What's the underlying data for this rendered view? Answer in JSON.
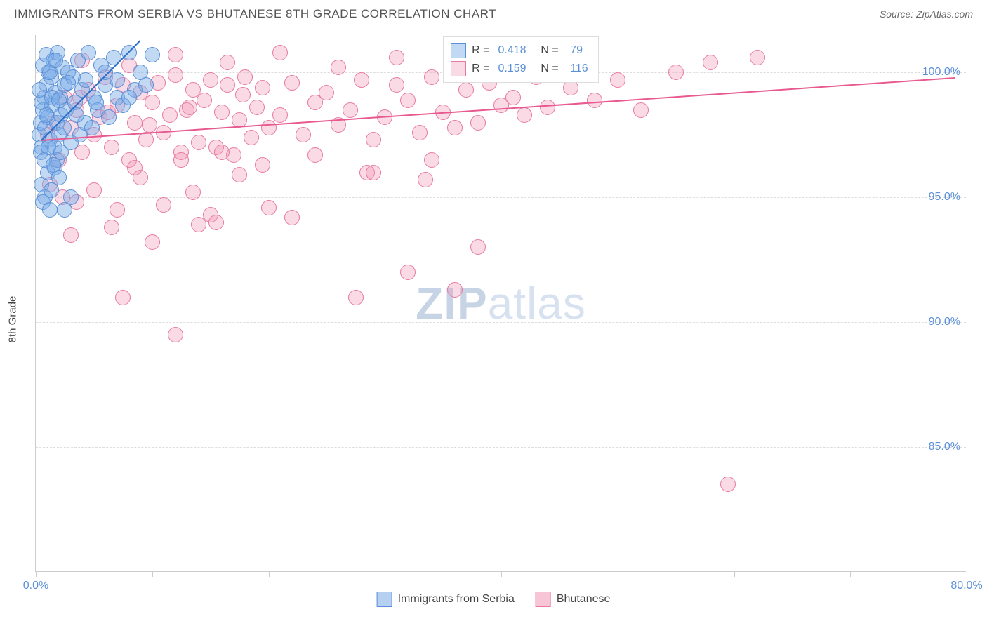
{
  "header": {
    "title": "IMMIGRANTS FROM SERBIA VS BHUTANESE 8TH GRADE CORRELATION CHART",
    "source": "Source: ZipAtlas.com"
  },
  "chart": {
    "type": "scatter",
    "y_axis_title": "8th Grade",
    "background_color": "#ffffff",
    "grid_color": "#dddddd",
    "axis_color": "#cccccc",
    "label_color": "#5b8fd6",
    "xlim": [
      0,
      80
    ],
    "ylim": [
      80,
      101.5
    ],
    "x_ticks": [
      0,
      10,
      20,
      30,
      40,
      50,
      60,
      70,
      80
    ],
    "x_tick_labels": {
      "0": "0.0%",
      "80": "80.0%"
    },
    "y_ticks": [
      85,
      90,
      95,
      100
    ],
    "y_tick_labels": [
      "85.0%",
      "90.0%",
      "95.0%",
      "100.0%"
    ],
    "marker_radius": 11,
    "watermark": {
      "bold": "ZIP",
      "light": "atlas"
    },
    "series": [
      {
        "name": "Immigrants from Serbia",
        "color_fill": "rgba(120,170,230,0.45)",
        "color_stroke": "#5b8fd6",
        "trend_color": "#2b6fc7",
        "R": "0.418",
        "N": "79",
        "trend": {
          "x1": 0.5,
          "y1": 97.3,
          "x2": 9.0,
          "y2": 101.3
        },
        "points": [
          [
            0.3,
            97.5
          ],
          [
            0.4,
            98.0
          ],
          [
            0.5,
            97.0
          ],
          [
            0.6,
            98.5
          ],
          [
            0.7,
            99.0
          ],
          [
            0.8,
            97.8
          ],
          [
            0.9,
            99.5
          ],
          [
            1.0,
            98.2
          ],
          [
            1.1,
            100.0
          ],
          [
            1.2,
            97.3
          ],
          [
            1.3,
            99.8
          ],
          [
            1.4,
            98.7
          ],
          [
            1.5,
            100.5
          ],
          [
            1.6,
            97.0
          ],
          [
            1.7,
            99.2
          ],
          [
            1.8,
            98.0
          ],
          [
            1.9,
            100.8
          ],
          [
            2.0,
            97.5
          ],
          [
            2.1,
            99.0
          ],
          [
            2.2,
            98.3
          ],
          [
            2.3,
            100.2
          ],
          [
            2.4,
            97.8
          ],
          [
            2.5,
            99.5
          ],
          [
            2.6,
            98.5
          ],
          [
            2.8,
            100.0
          ],
          [
            3.0,
            97.2
          ],
          [
            3.2,
            99.8
          ],
          [
            3.4,
            98.8
          ],
          [
            3.6,
            100.5
          ],
          [
            3.8,
            97.5
          ],
          [
            4.0,
            99.3
          ],
          [
            4.2,
            98.0
          ],
          [
            4.5,
            100.8
          ],
          [
            4.8,
            97.8
          ],
          [
            5.0,
            99.0
          ],
          [
            5.3,
            98.5
          ],
          [
            5.6,
            100.3
          ],
          [
            6.0,
            99.5
          ],
          [
            6.3,
            98.2
          ],
          [
            6.7,
            100.6
          ],
          [
            7.0,
            99.0
          ],
          [
            7.5,
            98.7
          ],
          [
            8.0,
            100.8
          ],
          [
            8.5,
            99.3
          ],
          [
            9.0,
            100.0
          ],
          [
            9.5,
            99.5
          ],
          [
            10.0,
            100.7
          ],
          [
            0.5,
            95.5
          ],
          [
            0.8,
            95.0
          ],
          [
            1.0,
            96.0
          ],
          [
            1.3,
            95.3
          ],
          [
            1.6,
            96.2
          ],
          [
            2.0,
            95.8
          ],
          [
            2.5,
            94.5
          ],
          [
            3.0,
            95.0
          ],
          [
            0.6,
            94.8
          ],
          [
            1.2,
            94.5
          ],
          [
            1.8,
            96.5
          ],
          [
            0.4,
            96.8
          ],
          [
            0.7,
            96.5
          ],
          [
            1.1,
            97.0
          ],
          [
            1.5,
            96.3
          ],
          [
            2.2,
            96.8
          ],
          [
            0.5,
            98.8
          ],
          [
            0.9,
            98.3
          ],
          [
            1.4,
            99.0
          ],
          [
            2.0,
            98.9
          ],
          [
            2.8,
            99.6
          ],
          [
            3.5,
            98.3
          ],
          [
            4.3,
            99.7
          ],
          [
            5.2,
            98.8
          ],
          [
            6.0,
            100.0
          ],
          [
            7.0,
            99.7
          ],
          [
            8.0,
            99.0
          ],
          [
            0.3,
            99.3
          ],
          [
            0.6,
            100.3
          ],
          [
            0.9,
            100.7
          ],
          [
            1.2,
            100.0
          ],
          [
            1.7,
            100.5
          ]
        ]
      },
      {
        "name": "Bhutanese",
        "color_fill": "rgba(240,150,180,0.35)",
        "color_stroke": "#e77aa0",
        "trend_color": "#e85a8f",
        "R": "0.159",
        "N": "116",
        "trend": {
          "x1": 0.5,
          "y1": 97.3,
          "x2": 79.0,
          "y2": 99.8
        },
        "points": [
          [
            1.0,
            97.5
          ],
          [
            1.5,
            98.0
          ],
          [
            2.0,
            96.5
          ],
          [
            2.5,
            99.0
          ],
          [
            3.0,
            97.8
          ],
          [
            3.5,
            98.5
          ],
          [
            4.0,
            96.8
          ],
          [
            4.5,
            99.3
          ],
          [
            5.0,
            97.5
          ],
          [
            5.5,
            98.2
          ],
          [
            6.0,
            99.8
          ],
          [
            6.5,
            97.0
          ],
          [
            7.0,
            98.7
          ],
          [
            7.5,
            99.5
          ],
          [
            8.0,
            96.5
          ],
          [
            8.5,
            98.0
          ],
          [
            9.0,
            99.2
          ],
          [
            9.5,
            97.3
          ],
          [
            10.0,
            98.8
          ],
          [
            10.5,
            99.6
          ],
          [
            11.0,
            97.6
          ],
          [
            11.5,
            98.3
          ],
          [
            12.0,
            99.9
          ],
          [
            12.5,
            96.8
          ],
          [
            13.0,
            98.5
          ],
          [
            13.5,
            99.3
          ],
          [
            14.0,
            97.2
          ],
          [
            14.5,
            98.9
          ],
          [
            15.0,
            99.7
          ],
          [
            15.5,
            97.0
          ],
          [
            16.0,
            98.4
          ],
          [
            16.5,
            99.5
          ],
          [
            17.0,
            96.7
          ],
          [
            17.5,
            98.1
          ],
          [
            18.0,
            99.8
          ],
          [
            18.5,
            97.4
          ],
          [
            19.0,
            98.6
          ],
          [
            19.5,
            99.4
          ],
          [
            20.0,
            97.8
          ],
          [
            21.0,
            98.3
          ],
          [
            22.0,
            99.6
          ],
          [
            23.0,
            97.5
          ],
          [
            24.0,
            98.8
          ],
          [
            25.0,
            99.2
          ],
          [
            26.0,
            97.9
          ],
          [
            27.0,
            98.5
          ],
          [
            28.0,
            99.7
          ],
          [
            29.0,
            97.3
          ],
          [
            30.0,
            98.2
          ],
          [
            31.0,
            99.5
          ],
          [
            32.0,
            98.9
          ],
          [
            33.0,
            97.6
          ],
          [
            34.0,
            99.8
          ],
          [
            35.0,
            98.4
          ],
          [
            36.0,
            97.8
          ],
          [
            37.0,
            99.3
          ],
          [
            38.0,
            98.0
          ],
          [
            39.0,
            99.6
          ],
          [
            40.0,
            98.7
          ],
          [
            41.0,
            99.0
          ],
          [
            42.0,
            98.3
          ],
          [
            43.0,
            99.8
          ],
          [
            44.0,
            98.6
          ],
          [
            46.0,
            99.4
          ],
          [
            48.0,
            98.9
          ],
          [
            50.0,
            99.7
          ],
          [
            52.0,
            98.5
          ],
          [
            55.0,
            100.0
          ],
          [
            58.0,
            100.4
          ],
          [
            62.0,
            100.6
          ],
          [
            1.2,
            95.5
          ],
          [
            2.3,
            95.0
          ],
          [
            3.5,
            94.8
          ],
          [
            5.0,
            95.3
          ],
          [
            7.0,
            94.5
          ],
          [
            9.0,
            95.8
          ],
          [
            11.0,
            94.7
          ],
          [
            13.5,
            95.2
          ],
          [
            15.0,
            94.3
          ],
          [
            17.5,
            95.9
          ],
          [
            20.0,
            94.6
          ],
          [
            3.0,
            93.5
          ],
          [
            6.5,
            93.8
          ],
          [
            10.0,
            93.2
          ],
          [
            14.0,
            93.9
          ],
          [
            7.5,
            91.0
          ],
          [
            12.0,
            89.5
          ],
          [
            15.5,
            94.0
          ],
          [
            22.0,
            94.2
          ],
          [
            27.5,
            91.0
          ],
          [
            32.0,
            92.0
          ],
          [
            36.0,
            91.3
          ],
          [
            28.5,
            96.0
          ],
          [
            33.5,
            95.7
          ],
          [
            38.0,
            93.0
          ],
          [
            59.5,
            83.5
          ],
          [
            8.5,
            96.2
          ],
          [
            12.5,
            96.5
          ],
          [
            16.0,
            96.8
          ],
          [
            19.5,
            96.3
          ],
          [
            24.0,
            96.7
          ],
          [
            29.0,
            96.0
          ],
          [
            34.0,
            96.5
          ],
          [
            4.0,
            100.5
          ],
          [
            8.0,
            100.3
          ],
          [
            12.0,
            100.7
          ],
          [
            16.5,
            100.4
          ],
          [
            21.0,
            100.8
          ],
          [
            26.0,
            100.2
          ],
          [
            31.0,
            100.6
          ],
          [
            37.0,
            100.3
          ],
          [
            44.0,
            100.5
          ],
          [
            3.8,
            99.0
          ],
          [
            6.2,
            98.4
          ],
          [
            9.8,
            97.9
          ],
          [
            13.2,
            98.6
          ],
          [
            17.8,
            99.1
          ]
        ]
      }
    ],
    "bottom_legend": [
      {
        "label": "Immigrants from Serbia",
        "fill": "rgba(120,170,230,0.55)",
        "stroke": "#5b8fd6"
      },
      {
        "label": "Bhutanese",
        "fill": "rgba(240,150,180,0.55)",
        "stroke": "#e77aa0"
      }
    ]
  }
}
